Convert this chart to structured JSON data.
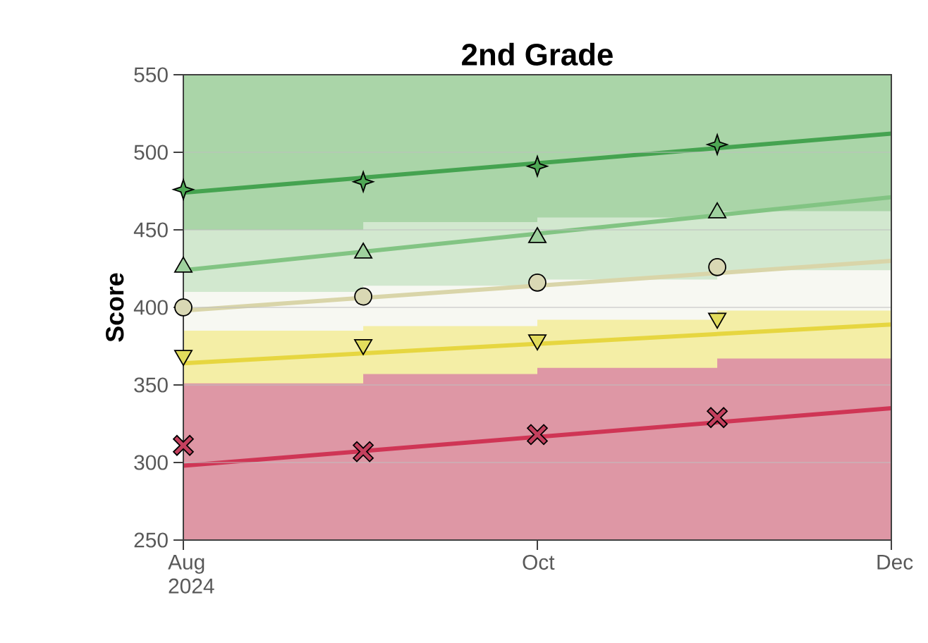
{
  "chart_data": {
    "type": "scatter",
    "title": "2nd Grade",
    "ylabel": "Score",
    "xlim": [
      "2024-08-01",
      "2024-12-01"
    ],
    "xticks": [
      {
        "value": "2024-08-01",
        "label": "Aug 2024"
      },
      {
        "value": "2024-10-01",
        "label": "Oct"
      },
      {
        "value": "2024-12-01",
        "label": "Dec"
      }
    ],
    "ylim": [
      250,
      550
    ],
    "yticks": [
      250,
      300,
      350,
      400,
      450,
      500,
      550
    ],
    "grid": "y",
    "series": [
      {
        "type": "area",
        "color": "#aad5a8",
        "x": [
          "2024-08-01",
          "2024-09-01",
          "2024-09-01",
          "2024-10-01",
          "2024-10-01",
          "2024-11-01",
          "2024-11-01",
          "2024-12-01"
        ],
        "values": [
          550,
          550,
          550,
          550,
          550,
          550,
          550,
          550
        ]
      },
      {
        "type": "area",
        "color": "#d2e8cf",
        "x": [
          "2024-08-01",
          "2024-09-01",
          "2024-09-01",
          "2024-10-01",
          "2024-10-01",
          "2024-11-01",
          "2024-11-01",
          "2024-12-01"
        ],
        "values": [
          450,
          450,
          455,
          455,
          458,
          458,
          462,
          462
        ]
      },
      {
        "type": "area",
        "color": "#f7f8f2",
        "x": [
          "2024-08-01",
          "2024-09-01",
          "2024-09-01",
          "2024-10-01",
          "2024-10-01",
          "2024-11-01",
          "2024-11-01",
          "2024-12-01"
        ],
        "values": [
          410,
          410,
          414,
          414,
          418,
          418,
          424,
          424
        ]
      },
      {
        "type": "area",
        "color": "#f4eea6",
        "x": [
          "2024-08-01",
          "2024-09-01",
          "2024-09-01",
          "2024-10-01",
          "2024-10-01",
          "2024-11-01",
          "2024-11-01",
          "2024-12-01"
        ],
        "values": [
          385,
          385,
          388,
          388,
          392,
          392,
          398,
          398
        ]
      },
      {
        "type": "area",
        "color": "#de97a5",
        "x": [
          "2024-08-01",
          "2024-09-01",
          "2024-09-01",
          "2024-10-01",
          "2024-10-01",
          "2024-11-01",
          "2024-11-01",
          "2024-12-01"
        ],
        "values": [
          351,
          351,
          357,
          357,
          361,
          361,
          367,
          367
        ]
      },
      {
        "type": "line",
        "color": "#45a350",
        "x": [
          "2024-08-01",
          "2024-12-01"
        ],
        "values": [
          474,
          512
        ]
      },
      {
        "type": "line",
        "color": "#82c483",
        "x": [
          "2024-08-01",
          "2024-12-01"
        ],
        "values": [
          424,
          471
        ]
      },
      {
        "type": "line",
        "color": "#d9d5a9",
        "x": [
          "2024-08-01",
          "2024-12-01"
        ],
        "values": [
          398,
          430
        ]
      },
      {
        "type": "line",
        "color": "#e6d640",
        "x": [
          "2024-08-01",
          "2024-12-01"
        ],
        "values": [
          364,
          389
        ]
      },
      {
        "type": "line",
        "color": "#cf3555",
        "x": [
          "2024-08-01",
          "2024-12-01"
        ],
        "values": [
          298,
          335
        ]
      },
      {
        "marker": "star",
        "color": "#4fa855",
        "x": [
          "2024-08-01",
          "2024-09-01",
          "2024-10-01",
          "2024-11-01"
        ],
        "values": [
          476,
          481,
          491,
          505
        ]
      },
      {
        "marker": "triangle",
        "color": "#9fd19e",
        "x": [
          "2024-08-01",
          "2024-09-01",
          "2024-10-01",
          "2024-11-01"
        ],
        "values": [
          426,
          435,
          445,
          461
        ]
      },
      {
        "marker": "circle",
        "color": "#d9d8b4",
        "x": [
          "2024-08-01",
          "2024-09-01",
          "2024-10-01",
          "2024-11-01"
        ],
        "values": [
          400,
          407,
          416,
          426
        ]
      },
      {
        "marker": "triangle-down",
        "color": "#e2dc5c",
        "x": [
          "2024-08-01",
          "2024-09-01",
          "2024-10-01",
          "2024-11-01"
        ],
        "values": [
          369,
          376,
          379,
          393
        ]
      },
      {
        "marker": "cross",
        "color": "#c4405e",
        "x": [
          "2024-08-01",
          "2024-09-01",
          "2024-10-01",
          "2024-11-01"
        ],
        "values": [
          311,
          307,
          318,
          329
        ]
      }
    ]
  }
}
